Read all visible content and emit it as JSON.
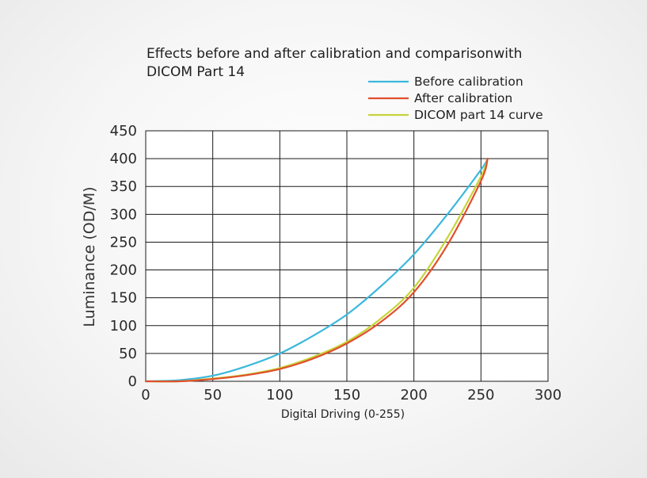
{
  "chart_data": {
    "type": "line",
    "title_lines": [
      "Effects before and after calibration and comparisonwith",
      "DICOM Part 14"
    ],
    "xlabel": "Digital Driving (0-255)",
    "ylabel": "Luminance (OD/M)",
    "xlim": [
      0,
      300
    ],
    "ylim": [
      0,
      450
    ],
    "xticks": [
      0,
      50,
      100,
      150,
      200,
      250,
      300
    ],
    "yticks": [
      0,
      50,
      100,
      150,
      200,
      250,
      300,
      350,
      400,
      450
    ],
    "grid": true,
    "legend_position": "top-right",
    "series": [
      {
        "name": "Before calibration",
        "color": "#3bb8dc",
        "x": [
          0,
          25,
          50,
          75,
          100,
          125,
          150,
          175,
          200,
          225,
          250,
          255
        ],
        "y": [
          0,
          2,
          10,
          27,
          50,
          82,
          120,
          170,
          228,
          300,
          380,
          400
        ]
      },
      {
        "name": "After calibration",
        "color": "#e04f2c",
        "x": [
          0,
          25,
          50,
          75,
          100,
          125,
          150,
          175,
          200,
          225,
          250,
          255
        ],
        "y": [
          0,
          0,
          4,
          11,
          22,
          41,
          68,
          106,
          160,
          245,
          360,
          400
        ]
      },
      {
        "name": "DICOM part 14 curve",
        "color": "#c7d43a",
        "x": [
          0,
          25,
          50,
          75,
          100,
          125,
          150,
          175,
          200,
          225,
          250,
          255
        ],
        "y": [
          0,
          0,
          5,
          12,
          24,
          44,
          71,
          112,
          168,
          258,
          368,
          400
        ]
      }
    ]
  }
}
